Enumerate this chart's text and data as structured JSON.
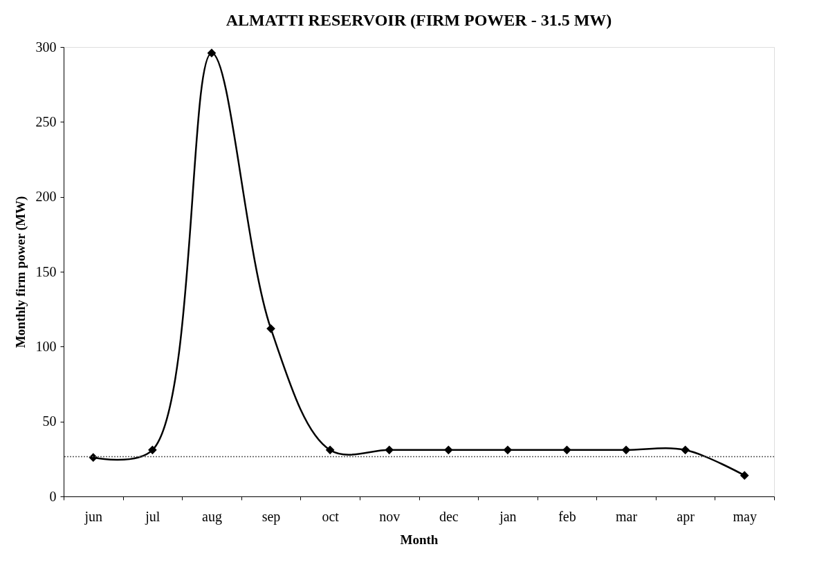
{
  "chart_data": {
    "type": "line",
    "title": "ALMATTI RESERVOIR (FIRM POWER - 31.5 MW)",
    "xlabel": "Month",
    "ylabel": "Monthly firm power (MW)",
    "categories": [
      "jun",
      "jul",
      "aug",
      "sep",
      "oct",
      "nov",
      "dec",
      "jan",
      "feb",
      "mar",
      "apr",
      "may"
    ],
    "series": [
      {
        "color": "#000000",
        "values": [
          26,
          31,
          296,
          112,
          31,
          31,
          31,
          31,
          31,
          31,
          31,
          14
        ]
      }
    ],
    "ylim": [
      0,
      300
    ],
    "yticks": [
      0,
      50,
      100,
      150,
      200,
      250,
      300
    ],
    "ref_lines": [
      {
        "axis": "y",
        "value": 26.5,
        "color": "#555555",
        "line_style": "dotted"
      }
    ],
    "marker": "diamond",
    "line_style": "solid",
    "grid": false
  }
}
